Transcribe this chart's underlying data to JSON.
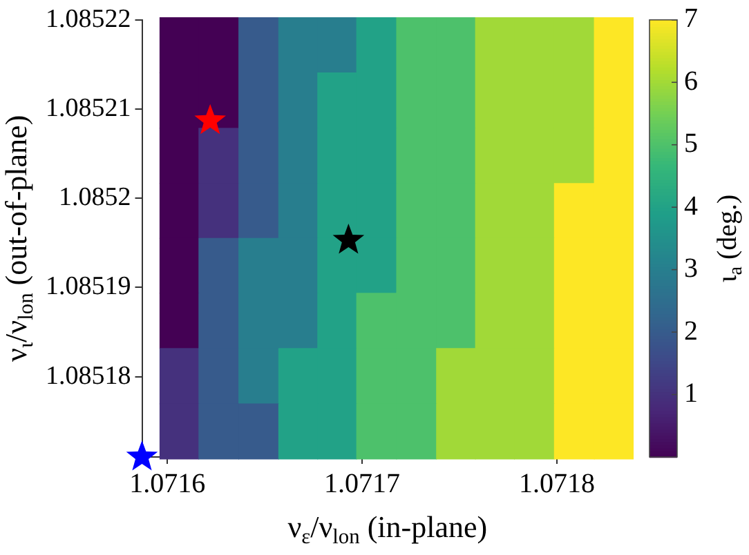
{
  "chart_data": {
    "type": "heatmap",
    "xlabel": "ν$_{ε}$/ν$_{lon}$ (in-plane)",
    "ylabel": "ν$_{ι}$/ν$_{lon}$ (out-of-plane)",
    "clabel": "ι$_{a}$ (deg.)",
    "x": [
      1.071606,
      1.071626,
      1.071647,
      1.071667,
      1.071687,
      1.071707,
      1.071728,
      1.071748,
      1.071768,
      1.071788,
      1.071809,
      1.071829
    ],
    "y": [
      1.0852172,
      1.085211,
      1.0852048,
      1.0851986,
      1.0851925,
      1.0851863,
      1.0851801,
      1.0851739
    ],
    "cells": [
      [
        0,
        0,
        2,
        3,
        3,
        4,
        5,
        5,
        6,
        6,
        6,
        7
      ],
      [
        0,
        0,
        2,
        3,
        4,
        4,
        5,
        5,
        6,
        6,
        6,
        7
      ],
      [
        0,
        1,
        2,
        3,
        4,
        4,
        5,
        5,
        6,
        6,
        6,
        7
      ],
      [
        0,
        1,
        2,
        3,
        4,
        4,
        5,
        5,
        6,
        6,
        7,
        7
      ],
      [
        0,
        2,
        3,
        3,
        4,
        4,
        5,
        5,
        6,
        6,
        7,
        7
      ],
      [
        0,
        2,
        3,
        3,
        4,
        5,
        5,
        5,
        6,
        6,
        7,
        7
      ],
      [
        1,
        2,
        3,
        4,
        4,
        5,
        5,
        6,
        6,
        6,
        7,
        7
      ],
      [
        1,
        2,
        2,
        4,
        4,
        5,
        5,
        6,
        6,
        6,
        7,
        7
      ]
    ],
    "clim": [
      0,
      7
    ],
    "cticks": [
      1,
      2,
      3,
      4,
      5,
      6,
      7
    ],
    "xlim": [
      1.071587,
      1.071839
    ],
    "xticks": [
      {
        "value": 1.0716,
        "label": "1.0716"
      },
      {
        "value": 1.0717,
        "label": "1.0717"
      },
      {
        "value": 1.0718,
        "label": "1.0718"
      }
    ],
    "ylim": [
      1.085171,
      1.08522
    ],
    "yticks": [
      {
        "value": 1.08518,
        "label": "1.08518"
      },
      {
        "value": 1.08519,
        "label": "1.08519"
      },
      {
        "value": 1.0852,
        "label": "1.0852"
      },
      {
        "value": 1.08521,
        "label": "1.08521"
      },
      {
        "value": 1.08522,
        "label": "1.08522"
      }
    ],
    "series": [
      {
        "type": "scatter",
        "color": "#ff0000",
        "marker": "star",
        "x": [
          1.071622
        ],
        "values": [
          1.0852087
        ]
      },
      {
        "type": "scatter",
        "color": "#000000",
        "marker": "star",
        "x": [
          1.071693
        ],
        "values": [
          1.0851953
        ]
      },
      {
        "type": "scatter",
        "color": "#0000ff",
        "marker": "star",
        "x": [
          1.071587
        ],
        "values": [
          1.085171
        ]
      }
    ]
  }
}
